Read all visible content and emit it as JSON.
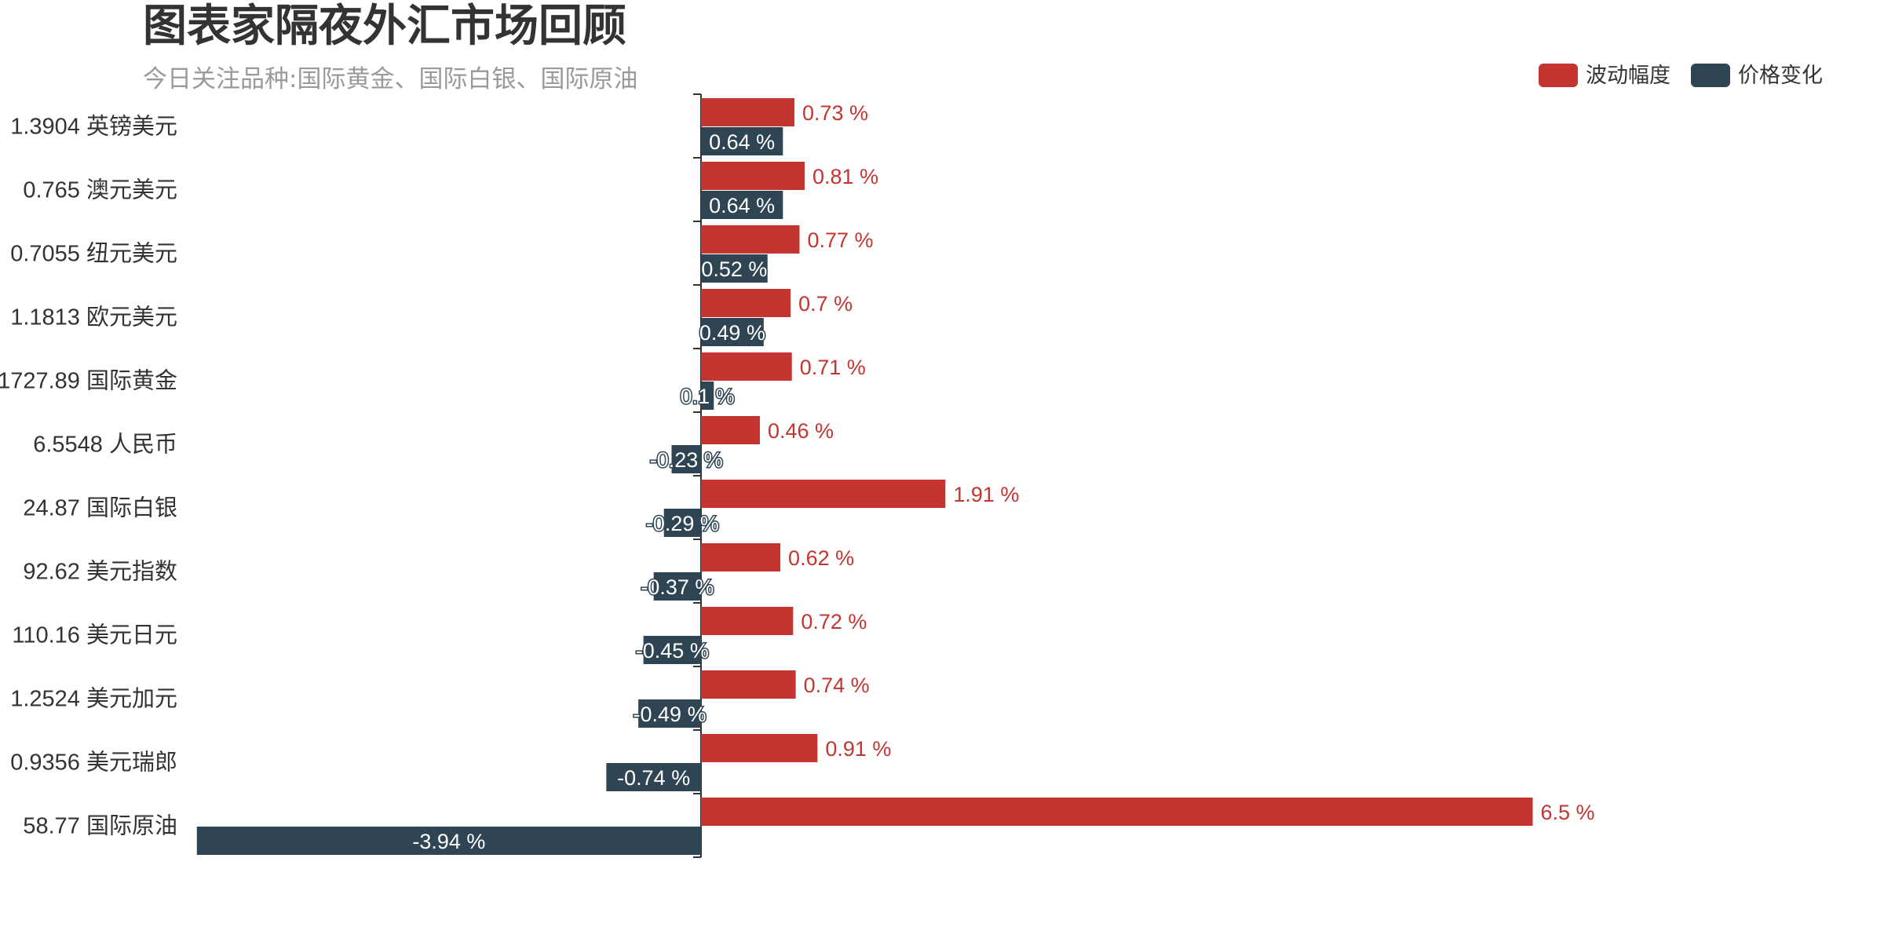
{
  "chart_data": {
    "type": "bar",
    "orientation": "horizontal",
    "title": "图表家隔夜外汇市场回顾",
    "subtitle": "今日关注品种:国际黄金、国际白银、国际原油",
    "categories": [
      "1.3904 英镑美元",
      "0.765 澳元美元",
      "0.7055 纽元美元",
      "1.1813 欧元美元",
      "1727.89 国际黄金",
      "6.5548 人民币",
      "24.87 国际白银",
      "92.62 美元指数",
      "110.16 美元日元",
      "1.2524 美元加元",
      "0.9356 美元瑞郎",
      "58.77 国际原油"
    ],
    "series": [
      {
        "name": "波动幅度",
        "color": "#c23531",
        "values": [
          0.73,
          0.81,
          0.77,
          0.7,
          0.71,
          0.46,
          1.91,
          0.62,
          0.72,
          0.74,
          0.91,
          6.5
        ],
        "labels": [
          "0.73 %",
          "0.81 %",
          "0.77 %",
          "0.7 %",
          "0.71 %",
          "0.46 %",
          "1.91 %",
          "0.62 %",
          "0.72 %",
          "0.74 %",
          "0.91 %",
          "6.5 %"
        ]
      },
      {
        "name": "价格变化",
        "color": "#2f4554",
        "values": [
          0.64,
          0.64,
          0.52,
          0.49,
          0.1,
          -0.23,
          -0.29,
          -0.37,
          -0.45,
          -0.49,
          -0.74,
          -3.94
        ],
        "labels": [
          "0.64 %",
          "0.64 %",
          "0.52 %",
          "0.49 %",
          "0.1 %",
          "-0.23 %",
          "-0.29 %",
          "-0.37 %",
          "-0.45 %",
          "-0.49 %",
          "-0.74 %",
          "-3.94 %"
        ]
      }
    ],
    "legend": "top-right",
    "grid": false
  }
}
